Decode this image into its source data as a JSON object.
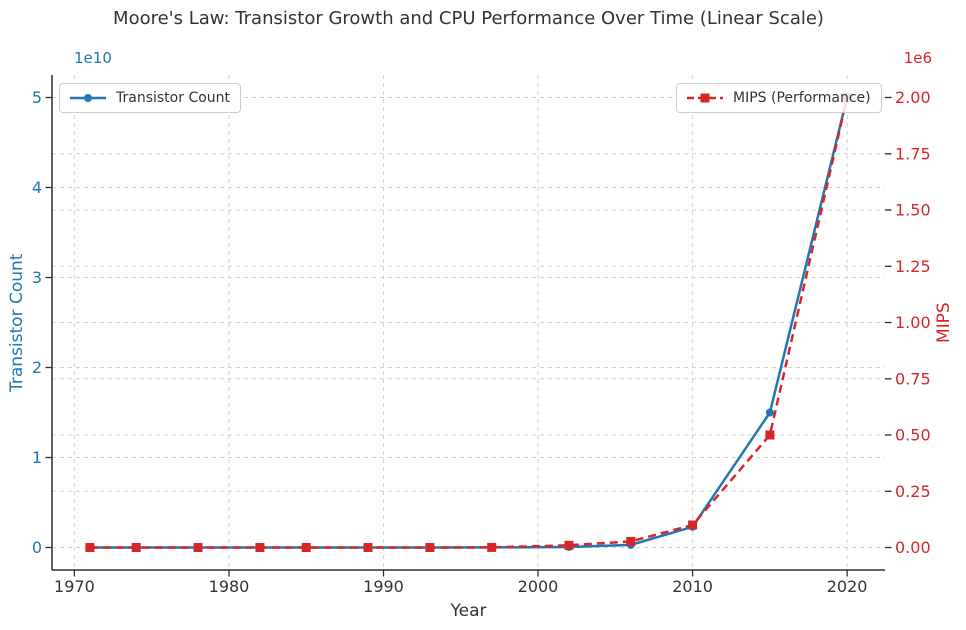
{
  "chart_data": {
    "type": "line",
    "title": "Moore's Law: Transistor Growth and CPU Performance Over Time (Linear Scale)",
    "xlabel": "Year",
    "grid": {
      "visible": true,
      "line_style": "dashed",
      "color": "#cccccc"
    },
    "x_axis": {
      "tick_values": [
        1970,
        1980,
        1990,
        2000,
        2010,
        2020
      ],
      "tick_labels": [
        "1970",
        "1980",
        "1990",
        "2000",
        "2010",
        "2020"
      ],
      "range": [
        1968.55,
        2022.45
      ]
    },
    "y_left": {
      "label": "Transistor Count",
      "color": "#1f77b4",
      "offset_text": "1e10",
      "tick_values": [
        0,
        1,
        2,
        3,
        4,
        5
      ],
      "tick_labels": [
        "0",
        "1",
        "2",
        "3",
        "4",
        "5"
      ],
      "scale": 10000000000,
      "range": [
        -2500000000,
        52500000000
      ]
    },
    "y_right": {
      "label": "MIPS",
      "color": "#d62728",
      "offset_text": "1e6",
      "tick_values": [
        0,
        0.25,
        0.5,
        0.75,
        1.0,
        1.25,
        1.5,
        1.75,
        2.0
      ],
      "tick_labels": [
        "0.00",
        "0.25",
        "0.50",
        "0.75",
        "1.00",
        "1.25",
        "1.50",
        "1.75",
        "2.00"
      ],
      "scale": 1000000,
      "range": [
        -100000,
        2100000
      ]
    },
    "x": [
      1971,
      1974,
      1978,
      1982,
      1985,
      1989,
      1993,
      1997,
      2002,
      2006,
      2010,
      2015,
      2020
    ],
    "series": [
      {
        "name": "Transistor Count",
        "axis": "left",
        "color": "#1f77b4",
        "line_style": "solid",
        "marker": "circle",
        "values": [
          2300,
          6000,
          29000,
          134000,
          275000,
          1200000,
          3100000,
          7500000,
          55000000,
          291000000,
          2300000000,
          15000000000,
          50000000000
        ]
      },
      {
        "name": "MIPS (Performance)",
        "axis": "right",
        "color": "#d62728",
        "line_style": "dashed",
        "marker": "square",
        "values": [
          0.09,
          0.64,
          0.75,
          2.66,
          11,
          41,
          188,
          541,
          9726,
          27079,
          100000,
          500000,
          2000000
        ]
      }
    ],
    "legends": [
      {
        "label": "Transistor Count",
        "position": "upper left"
      },
      {
        "label": "MIPS (Performance)",
        "position": "upper right"
      }
    ]
  },
  "colors": {
    "background": "#ffffff",
    "text": "#333333",
    "spine": "#2e2e2e",
    "grid": "#cccccc",
    "blue": "#1f77b4",
    "red": "#d62728"
  }
}
